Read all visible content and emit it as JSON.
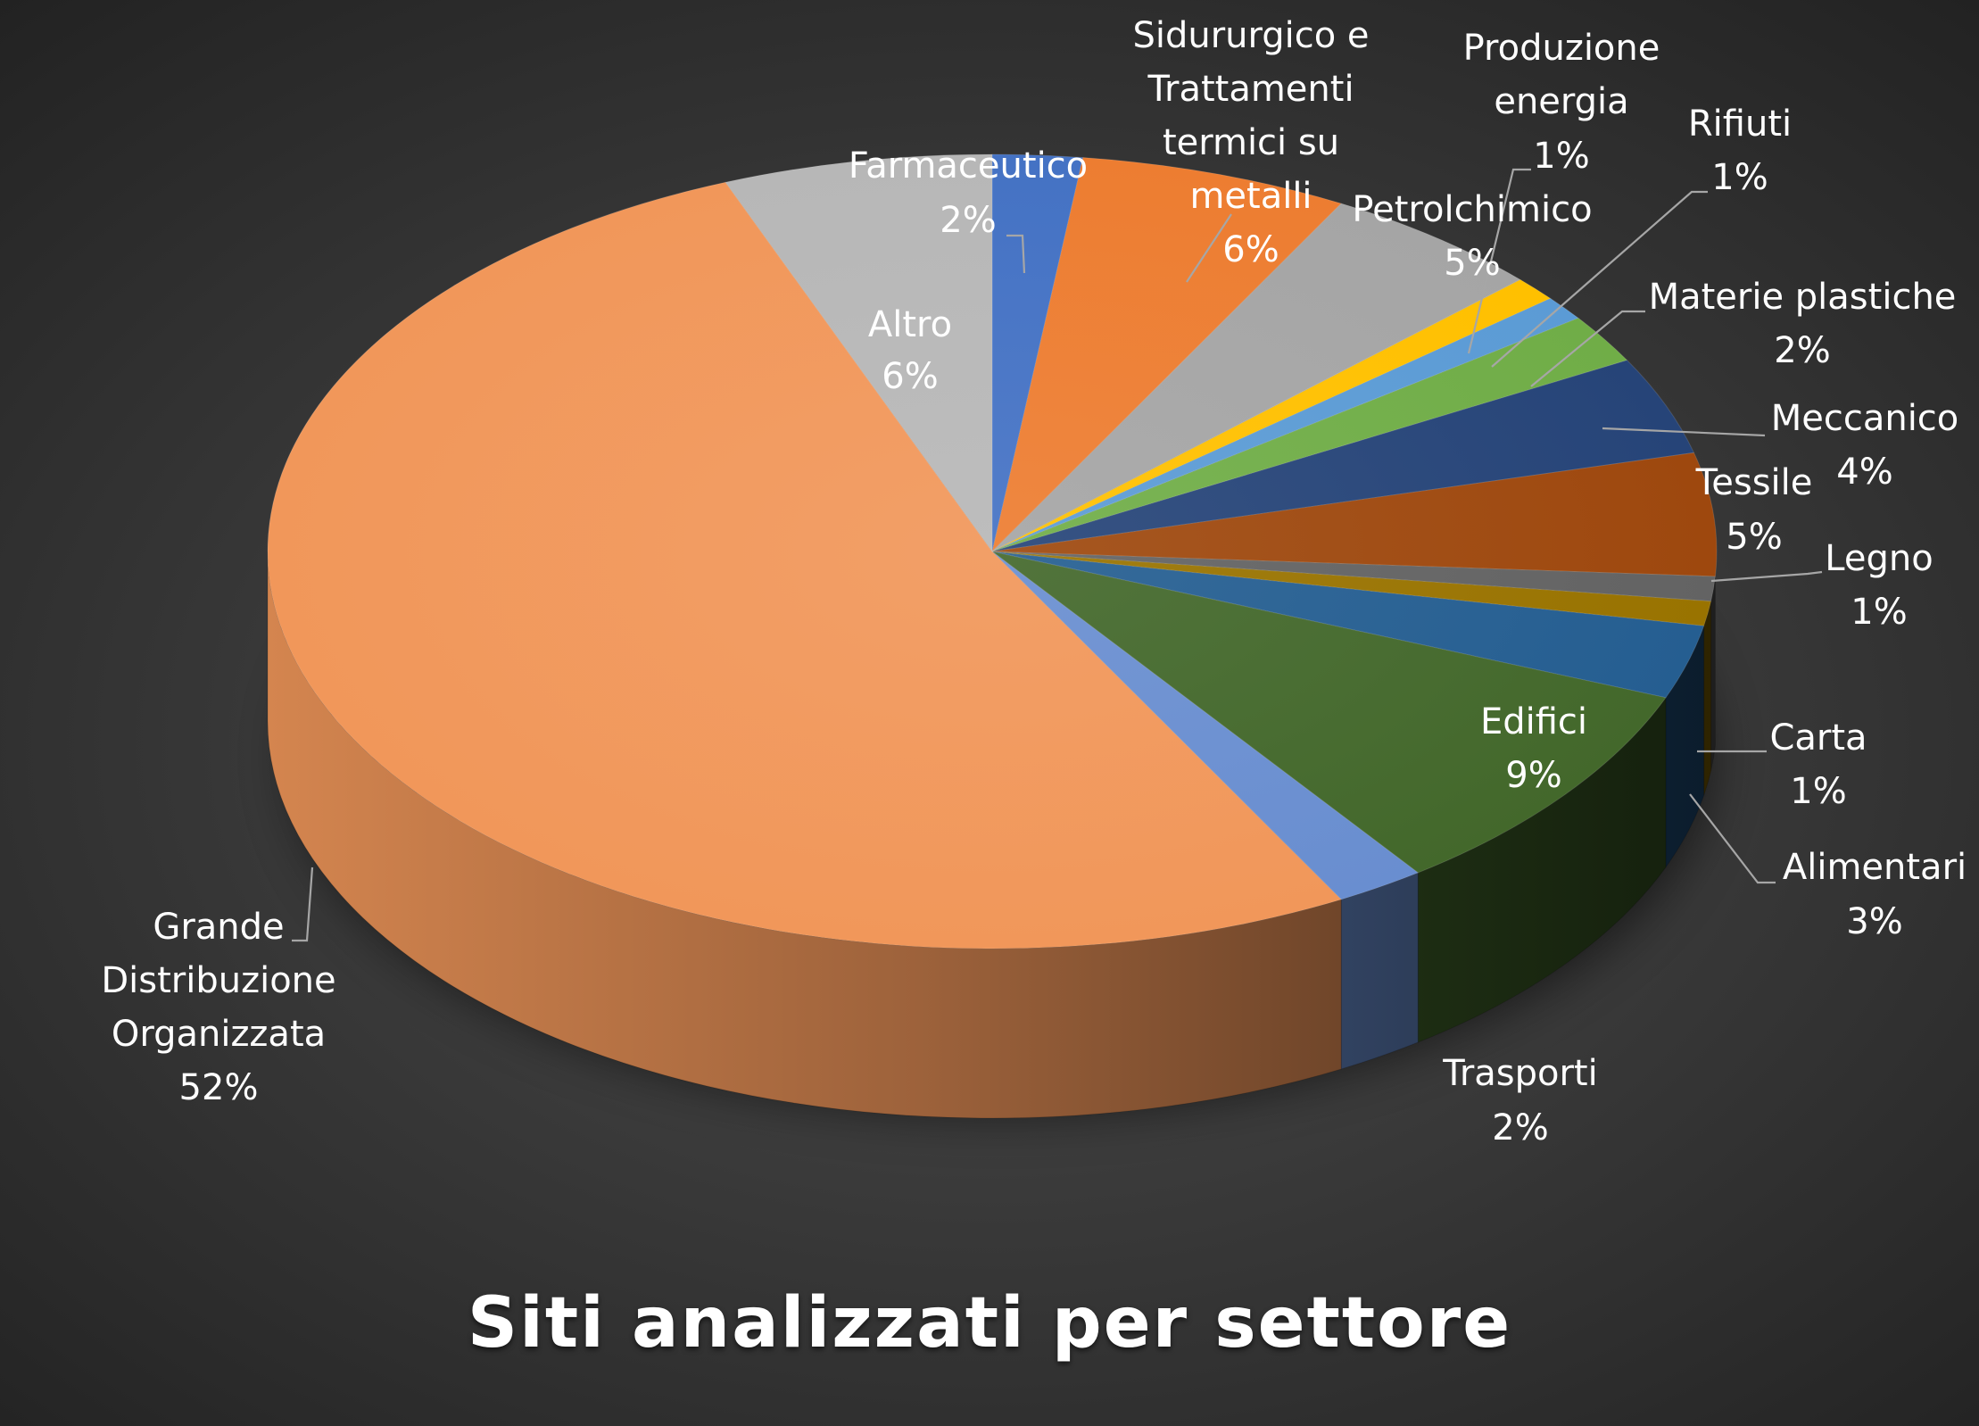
{
  "chart_data": {
    "type": "pie",
    "title": "Siti analizzati per settore",
    "three_d": true,
    "slices": [
      {
        "label": "Farmaceutico",
        "value": 2,
        "value_label": "2%",
        "color": "#4472c4"
      },
      {
        "label": "Sidururgico e Trattamenti termici su metalli",
        "value": 6,
        "value_label": "6%",
        "color": "#ed7d31"
      },
      {
        "label": "Petrolchimico",
        "value": 5,
        "value_label": "5%",
        "color": "#a5a5a5"
      },
      {
        "label": "Produzione energia",
        "value": 1,
        "value_label": "1%",
        "color": "#ffc000"
      },
      {
        "label": "Rifiuti",
        "value": 1,
        "value_label": "1%",
        "color": "#5b9bd5"
      },
      {
        "label": "Materie plastiche",
        "value": 2,
        "value_label": "2%",
        "color": "#70ad47"
      },
      {
        "label": "Meccanico",
        "value": 4,
        "value_label": "4%",
        "color": "#264478"
      },
      {
        "label": "Tessile",
        "value": 5,
        "value_label": "5%",
        "color": "#9e480e"
      },
      {
        "label": "Legno",
        "value": 1,
        "value_label": "1%",
        "color": "#636363"
      },
      {
        "label": "Carta",
        "value": 1,
        "value_label": "1%",
        "color": "#997300"
      },
      {
        "label": "Alimentari",
        "value": 3,
        "value_label": "3%",
        "color": "#255e91"
      },
      {
        "label": "Edifici",
        "value": 9,
        "value_label": "9%",
        "color": "#43682b"
      },
      {
        "label": "Trasporti",
        "value": 2,
        "value_label": "2%",
        "color": "#698ed0"
      },
      {
        "label": "Grande Distribuzione Organizzata",
        "value": 52,
        "value_label": "52%",
        "color": "#f1975a"
      },
      {
        "label": "Altro",
        "value": 6,
        "value_label": "6%",
        "color": "#b7b7b7"
      }
    ]
  }
}
